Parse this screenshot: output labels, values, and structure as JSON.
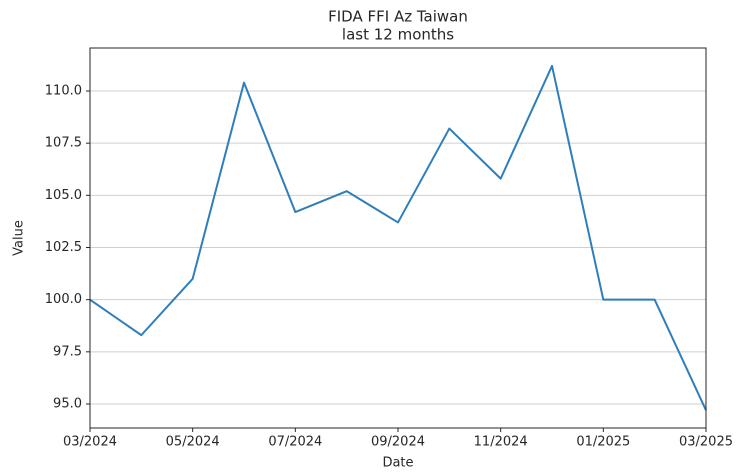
{
  "chart_data": {
    "type": "line",
    "title": "FIDA FFI Az Taiwan",
    "subtitle": "last 12 months",
    "x_label": "Date",
    "y_label": "Value",
    "x": [
      "03/2024",
      "04/2024",
      "05/2024",
      "06/2024",
      "07/2024",
      "08/2024",
      "09/2024",
      "10/2024",
      "11/2024",
      "12/2024",
      "01/2025",
      "02/2025",
      "03/2025"
    ],
    "xticks": [
      "03/2024",
      "05/2024",
      "07/2024",
      "09/2024",
      "11/2024",
      "01/2025",
      "03/2025"
    ],
    "series": [
      {
        "name": "Value",
        "color": "#2e7ebc",
        "values": [
          100.0,
          98.3,
          101.0,
          110.4,
          104.2,
          105.2,
          103.7,
          108.2,
          105.8,
          111.2,
          100.0,
          100.0,
          94.7
        ]
      }
    ],
    "ylim": [
      93.85,
      112.06
    ],
    "yticks": [
      {
        "value": 95,
        "label": "95.0"
      },
      {
        "value": 97.5,
        "label": "97.5"
      },
      {
        "value": 100,
        "label": "100.0"
      },
      {
        "value": 102.5,
        "label": "102.5"
      },
      {
        "value": 105,
        "label": "105.0"
      },
      {
        "value": 107.5,
        "label": "107.5"
      },
      {
        "value": 110,
        "label": "110.0"
      }
    ],
    "grid": true
  }
}
